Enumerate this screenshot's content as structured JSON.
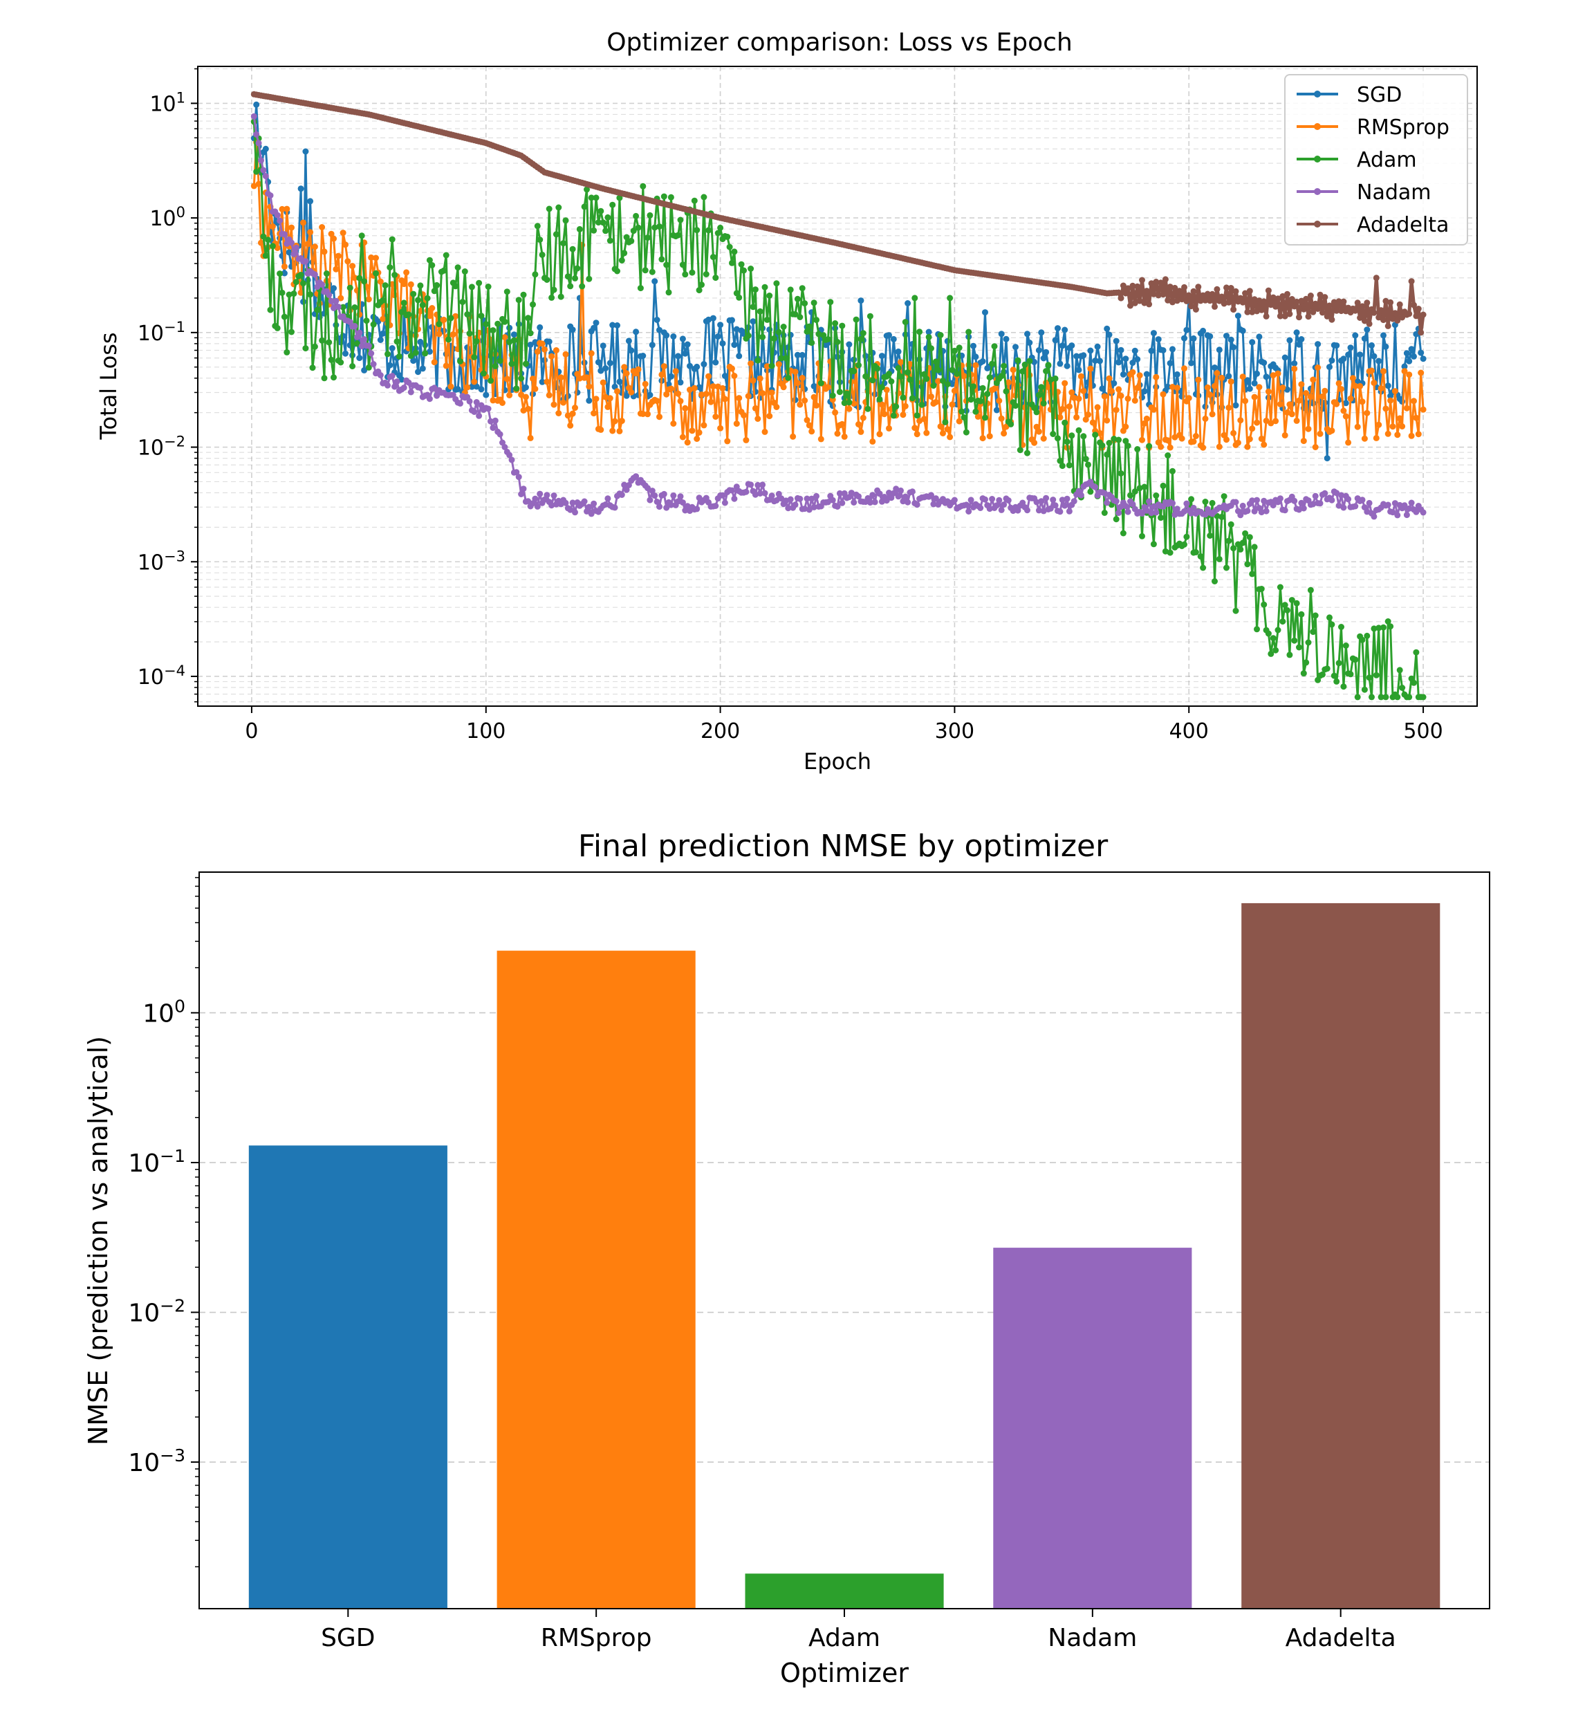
{
  "charts": [
    {
      "title": "Optimizer comparison: Loss vs Epoch",
      "xlabel": "Epoch",
      "ylabel": "Total Loss",
      "xticks": [
        "0",
        "100",
        "200",
        "300",
        "400",
        "500"
      ],
      "ytick_labels": [
        {
          "base": "10",
          "exp": "1"
        },
        {
          "base": "10",
          "exp": "0"
        },
        {
          "base": "10",
          "exp": "−1"
        },
        {
          "base": "10",
          "exp": "−2"
        },
        {
          "base": "10",
          "exp": "−3"
        },
        {
          "base": "10",
          "exp": "−4"
        }
      ],
      "legend": [
        "SGD",
        "RMSprop",
        "Adam",
        "Nadam",
        "Adadelta"
      ]
    },
    {
      "title": "Final prediction NMSE by optimizer",
      "xlabel": "Optimizer",
      "ylabel": "NMSE (prediction vs analytical)",
      "ytick_labels": [
        {
          "base": "10",
          "exp": "0"
        },
        {
          "base": "10",
          "exp": "−1"
        },
        {
          "base": "10",
          "exp": "−2"
        },
        {
          "base": "10",
          "exp": "−3"
        }
      ],
      "categories": [
        "SGD",
        "RMSprop",
        "Adam",
        "Nadam",
        "Adadelta"
      ]
    }
  ],
  "colors": {
    "SGD": "#1f77b4",
    "RMSprop": "#ff7f0e",
    "Adam": "#2ca02c",
    "Nadam": "#9467bd",
    "Adadelta": "#8c564b"
  },
  "chart_data": [
    {
      "type": "line",
      "title": "Optimizer comparison: Loss vs Epoch",
      "xlabel": "Epoch",
      "ylabel": "Total Loss",
      "yscale": "log",
      "xlim": [
        -23,
        523
      ],
      "ylim": [
        5.5e-05,
        21
      ],
      "grid": true,
      "legend_position": "top-right",
      "series": [
        {
          "name": "SGD",
          "noise": 0.35,
          "keypoints": [
            [
              1,
              7.5
            ],
            [
              3,
              4.5
            ],
            [
              8,
              1.2
            ],
            [
              15,
              0.6
            ],
            [
              20,
              0.4
            ],
            [
              30,
              0.2
            ],
            [
              50,
              0.09
            ],
            [
              80,
              0.06
            ],
            [
              120,
              0.055
            ],
            [
              200,
              0.06
            ],
            [
              250,
              0.05
            ],
            [
              300,
              0.045
            ],
            [
              350,
              0.05
            ],
            [
              400,
              0.05
            ],
            [
              450,
              0.045
            ],
            [
              500,
              0.055
            ]
          ],
          "spikes": [
            [
              6,
              4.0
            ],
            [
              23,
              3.8
            ],
            [
              25,
              1.4
            ],
            [
              21,
              1.8
            ],
            [
              140,
              0.2
            ],
            [
              172,
              0.28
            ],
            [
              239,
              0.15
            ],
            [
              260,
              0.19
            ],
            [
              280,
              0.18
            ],
            [
              313,
              0.15
            ],
            [
              337,
              0.1
            ],
            [
              400,
              0.2
            ],
            [
              421,
              0.14
            ],
            [
              459,
              0.008
            ],
            [
              446,
              0.1
            ]
          ]
        },
        {
          "name": "RMSprop",
          "noise": 0.35,
          "keypoints": [
            [
              1,
              2.7
            ],
            [
              5,
              1.0
            ],
            [
              10,
              0.75
            ],
            [
              20,
              0.45
            ],
            [
              40,
              0.33
            ],
            [
              60,
              0.22
            ],
            [
              80,
              0.08
            ],
            [
              100,
              0.055
            ],
            [
              120,
              0.04
            ],
            [
              150,
              0.03
            ],
            [
              200,
              0.025
            ],
            [
              250,
              0.025
            ],
            [
              300,
              0.025
            ],
            [
              350,
              0.022
            ],
            [
              400,
              0.022
            ],
            [
              450,
              0.023
            ],
            [
              500,
              0.025
            ]
          ],
          "spikes": [
            [
              141,
              0.58
            ],
            [
              119,
              0.012
            ],
            [
              186,
              0.011
            ],
            [
              268,
              0.013
            ],
            [
              387,
              0.011
            ],
            [
              454,
              0.01
            ],
            [
              480,
              0.012
            ],
            [
              498,
              0.013
            ]
          ]
        },
        {
          "name": "Adam",
          "noise": 0.45,
          "keypoints": [
            [
              1,
              10.0
            ],
            [
              4,
              1.5
            ],
            [
              8,
              0.25
            ],
            [
              20,
              0.15
            ],
            [
              40,
              0.1
            ],
            [
              60,
              0.15
            ],
            [
              80,
              0.2
            ],
            [
              100,
              0.1
            ],
            [
              120,
              0.08
            ],
            [
              125,
              0.5
            ],
            [
              150,
              0.8
            ],
            [
              180,
              0.6
            ],
            [
              200,
              0.6
            ],
            [
              205,
              0.2
            ],
            [
              230,
              0.1
            ],
            [
              260,
              0.06
            ],
            [
              300,
              0.04
            ],
            [
              340,
              0.02
            ],
            [
              355,
              0.007
            ],
            [
              380,
              0.004
            ],
            [
              400,
              0.003
            ],
            [
              415,
              0.0015
            ],
            [
              430,
              0.0005
            ],
            [
              450,
              0.00025
            ],
            [
              470,
              0.00013
            ],
            [
              500,
              9.55e-05
            ]
          ],
          "spikes": [
            [
              122,
              0.85
            ],
            [
              145,
              1.5
            ],
            [
              154,
              1.3
            ],
            [
              200,
              0.82
            ],
            [
              31,
              0.04
            ],
            [
              47,
              0.7
            ],
            [
              60,
              0.65
            ],
            [
              283,
              0.2
            ],
            [
              298,
              0.2
            ],
            [
              381,
              0.0045
            ],
            [
              392,
              0.0012
            ],
            [
              402,
              0.0012
            ]
          ]
        },
        {
          "name": "Nadam",
          "noise": 0.06,
          "keypoints": [
            [
              1,
              8.0
            ],
            [
              3,
              4.0
            ],
            [
              5,
              2.5
            ],
            [
              10,
              1.0
            ],
            [
              20,
              0.45
            ],
            [
              30,
              0.25
            ],
            [
              40,
              0.13
            ],
            [
              50,
              0.07
            ],
            [
              55,
              0.04
            ],
            [
              70,
              0.032
            ],
            [
              90,
              0.025
            ],
            [
              100,
              0.02
            ],
            [
              105,
              0.015
            ],
            [
              110,
              0.008
            ],
            [
              117,
              0.0035
            ],
            [
              130,
              0.0033
            ],
            [
              145,
              0.0029
            ],
            [
              155,
              0.0033
            ],
            [
              163,
              0.0057
            ],
            [
              172,
              0.0035
            ],
            [
              190,
              0.0031
            ],
            [
              210,
              0.0042
            ],
            [
              215,
              0.0044
            ],
            [
              230,
              0.0031
            ],
            [
              275,
              0.0039
            ],
            [
              300,
              0.0031
            ],
            [
              320,
              0.0032
            ],
            [
              350,
              0.0031
            ],
            [
              358,
              0.0049
            ],
            [
              370,
              0.003
            ],
            [
              420,
              0.0029
            ],
            [
              450,
              0.0033
            ],
            [
              460,
              0.0037
            ],
            [
              480,
              0.0028
            ],
            [
              500,
              0.003
            ]
          ],
          "spikes": []
        },
        {
          "name": "Adadelta",
          "noise": 0,
          "keypoints": [
            [
              1,
              12.0
            ],
            [
              50,
              8.0
            ],
            [
              100,
              4.5
            ],
            [
              115,
              3.5
            ],
            [
              125,
              2.5
            ],
            [
              150,
              1.8
            ],
            [
              200,
              1.0
            ],
            [
              250,
              0.6
            ],
            [
              300,
              0.35
            ],
            [
              350,
              0.25
            ],
            [
              365,
              0.22
            ],
            [
              380,
              0.23
            ],
            [
              400,
              0.21
            ],
            [
              450,
              0.17
            ],
            [
              500,
              0.14
            ]
          ],
          "spikes": [
            [
              480,
              0.3
            ],
            [
              495,
              0.28
            ],
            [
              499,
              0.1
            ]
          ],
          "osc_after": 370,
          "osc_amp": 0.25
        }
      ]
    },
    {
      "type": "bar",
      "title": "Final prediction NMSE by optimizer",
      "xlabel": "Optimizer",
      "ylabel": "NMSE (prediction vs analytical)",
      "yscale": "log",
      "categories": [
        "SGD",
        "RMSprop",
        "Adam",
        "Nadam",
        "Adadelta"
      ],
      "values": [
        0.13,
        2.6,
        0.00018,
        0.027,
        5.4
      ],
      "ylim": [
        0.000105,
        8.7
      ],
      "grid": "y-dashed"
    }
  ]
}
